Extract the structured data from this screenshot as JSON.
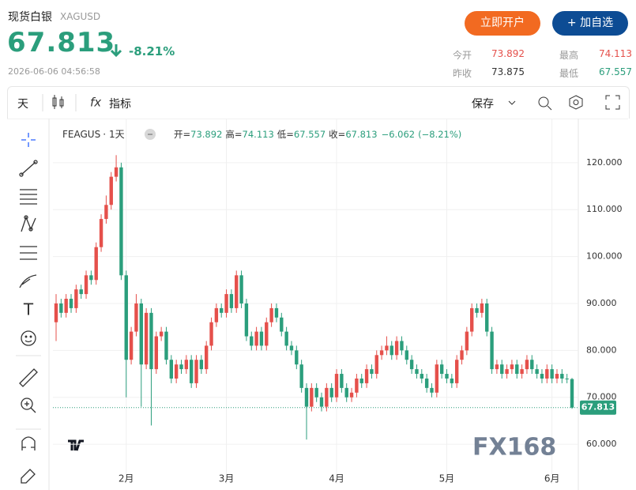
{
  "header": {
    "name": "现货白银",
    "symbol": "XAGUSD",
    "price": "67.813",
    "change": "-8.21%",
    "timestamp": "2026-06-06 04:56:58",
    "buttons": [
      "立即开户",
      "+ 加自选"
    ],
    "stats": [
      {
        "label": "今开",
        "value": "73.892"
      },
      {
        "label": "最高",
        "value": "74.113"
      },
      {
        "label": "昨收",
        "value": "73.875"
      },
      {
        "label": "最低",
        "value": "67.557"
      }
    ]
  },
  "toolbar": {
    "interval": "天",
    "indicators": "指标",
    "save": "保存"
  },
  "chart_data": {
    "type": "candlestick",
    "symbol_label": "FEAGUS",
    "interval": "1天",
    "legend_labels": {
      "open": "开=",
      "high": "高=",
      "low": "低=",
      "close": "收="
    },
    "change": "−6.062",
    "change_pct": "(−8.21%)",
    "watermark": "FX168",
    "up_color": "#e5504b",
    "down_color": "#2b9e7c",
    "categories": [
      null,
      null,
      null,
      null,
      null,
      null,
      null,
      null,
      null,
      null,
      null,
      null,
      null,
      null,
      "2月",
      null,
      null,
      null,
      null,
      null,
      null,
      null,
      null,
      null,
      null,
      null,
      null,
      null,
      null,
      null,
      null,
      null,
      null,
      null,
      "3月",
      null,
      null,
      null,
      null,
      null,
      null,
      null,
      null,
      null,
      null,
      null,
      null,
      null,
      null,
      null,
      null,
      null,
      null,
      null,
      null,
      null,
      "4月",
      null,
      null,
      null,
      null,
      null,
      null,
      null,
      null,
      null,
      null,
      null,
      null,
      null,
      null,
      null,
      null,
      null,
      null,
      null,
      null,
      null,
      "5月",
      null,
      null,
      null,
      null,
      null,
      null,
      null,
      null,
      null,
      null,
      null,
      null,
      null,
      null,
      null,
      null,
      null,
      null,
      null,
      null,
      "6月",
      null,
      null,
      null,
      null
    ],
    "open": [
      86,
      90,
      88,
      91,
      89,
      93,
      92,
      96,
      95,
      102,
      108,
      111,
      117,
      119,
      96,
      78,
      84,
      90,
      77,
      88,
      76,
      83,
      84,
      78,
      74,
      77,
      76,
      78,
      73,
      78,
      76,
      81,
      86,
      89,
      88,
      92,
      89,
      96,
      90,
      83,
      81,
      84,
      81,
      86,
      89,
      87,
      84,
      81,
      80,
      77,
      72,
      68,
      72,
      70,
      68,
      72,
      70,
      75,
      72,
      70,
      71,
      74,
      73,
      76,
      75,
      79,
      80,
      81,
      79,
      82,
      80,
      78,
      76,
      75,
      74,
      72,
      71,
      77,
      75,
      74,
      73,
      78,
      80,
      84,
      89,
      88,
      90,
      84,
      76,
      77,
      75,
      76,
      77,
      75,
      76,
      78,
      76,
      75,
      74,
      76,
      74,
      75,
      74,
      73.892
    ],
    "high": [
      92,
      91,
      92,
      92,
      94,
      94,
      97,
      97,
      103,
      109,
      113,
      118,
      121.6,
      120,
      97,
      85,
      92,
      91,
      89,
      89,
      84,
      85,
      85,
      79,
      78,
      78,
      79,
      79,
      79,
      79,
      82,
      87,
      90,
      90,
      93,
      93,
      97,
      97,
      91,
      84,
      85,
      85,
      87,
      90,
      90,
      88,
      85,
      82,
      81,
      78,
      73,
      73,
      73,
      71,
      73,
      73,
      76,
      76,
      73,
      72,
      75,
      75,
      77,
      77,
      80,
      81,
      83,
      82,
      83,
      83,
      81,
      79,
      77,
      76,
      75,
      73,
      78,
      78,
      76,
      75,
      79,
      81,
      85,
      90,
      90,
      91,
      91,
      85,
      78,
      78,
      77,
      78,
      78,
      77,
      79,
      79,
      77,
      76,
      77,
      77,
      76,
      76,
      75,
      74.113
    ],
    "low": [
      82,
      87,
      87,
      88,
      88,
      91,
      91,
      94,
      94,
      101,
      107,
      110,
      116,
      95,
      70,
      77,
      83,
      68,
      76,
      64,
      75,
      82,
      77,
      73,
      73,
      75,
      75,
      72,
      72,
      75,
      75,
      80,
      85,
      87,
      87,
      88,
      88,
      89,
      82,
      80,
      80,
      80,
      80,
      85,
      86,
      83,
      80,
      79,
      76,
      71,
      61,
      67,
      69,
      67,
      67,
      69,
      69,
      71,
      69,
      69,
      70,
      72,
      72,
      74,
      74,
      78,
      79,
      78,
      78,
      79,
      77,
      75,
      74,
      73,
      71,
      70,
      70,
      74,
      73,
      72,
      72,
      77,
      79,
      83,
      87,
      87,
      83,
      75,
      75,
      74,
      74,
      75,
      74,
      74,
      75,
      75,
      74,
      73,
      73,
      73,
      73,
      73,
      73,
      67.557
    ],
    "close": [
      90,
      88,
      91,
      89,
      93,
      92,
      96,
      95,
      102,
      108,
      111,
      117,
      119,
      96,
      78,
      84,
      90,
      77,
      88,
      76,
      83,
      84,
      78,
      74,
      77,
      76,
      78,
      73,
      78,
      76,
      81,
      86,
      89,
      88,
      92,
      89,
      96,
      90,
      83,
      81,
      84,
      81,
      86,
      89,
      87,
      84,
      81,
      80,
      77,
      72,
      68,
      72,
      70,
      68,
      72,
      70,
      75,
      72,
      70,
      71,
      74,
      73,
      76,
      75,
      79,
      80,
      81,
      79,
      82,
      80,
      78,
      76,
      75,
      74,
      72,
      71,
      77,
      75,
      74,
      73,
      78,
      80,
      84,
      89,
      88,
      90,
      84,
      76,
      77,
      75,
      76,
      77,
      75,
      76,
      78,
      76,
      75,
      74,
      76,
      74,
      75,
      74,
      73.875,
      67.813
    ],
    "ylim": [
      51.6,
      129.4
    ],
    "yticks": [
      {
        "value": 60,
        "label": "60.000"
      },
      {
        "value": 70,
        "label": "70.000"
      },
      {
        "value": 80,
        "label": "80.000"
      },
      {
        "value": 90,
        "label": "90.000"
      },
      {
        "value": 100,
        "label": "100.000"
      },
      {
        "value": 110,
        "label": "110.000"
      },
      {
        "value": 120,
        "label": "120.000"
      }
    ],
    "grid": true
  }
}
